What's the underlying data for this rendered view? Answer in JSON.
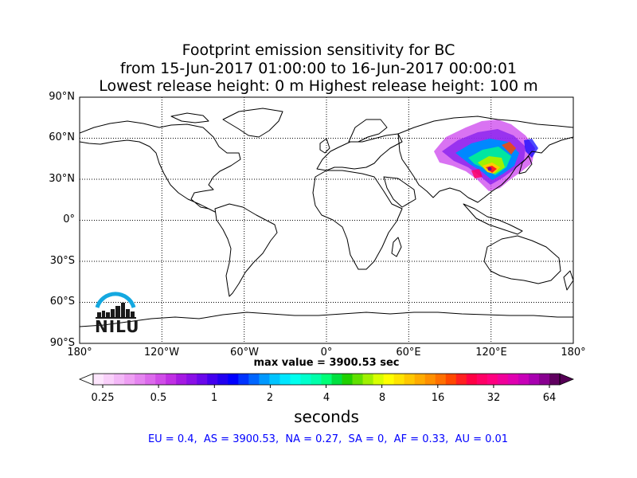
{
  "title": {
    "line1": "Footprint emission sensitivity for BC",
    "line2": "from 15-Jun-2017 01:00:00 to 16-Jun-2017 00:00:01",
    "line3": "Lowest release height: 0 m       Highest release height: 100 m"
  },
  "map": {
    "projection": "cylindrical",
    "grid": "dotted",
    "lat_labels": [
      "90°N",
      "60°N",
      "30°N",
      "0°",
      "30°S",
      "60°S",
      "90°S"
    ],
    "lon_labels": [
      "180°",
      "120°W",
      "60°W",
      "0°",
      "60°E",
      "120°E",
      "180°"
    ],
    "plume_region": "East Asia (China / Mongolia / Russian Far East)"
  },
  "logo": {
    "text": "NILU",
    "arc_color": "#14a8e0"
  },
  "max_value": "max value = 3900.53 sec",
  "colorbar": {
    "ticks": [
      "0.25",
      "0.5",
      "1",
      "2",
      "4",
      "8",
      "16",
      "32",
      "64"
    ],
    "units": "seconds",
    "colors": [
      "#fde6fd",
      "#f9d0fa",
      "#f3b8f7",
      "#ee9ff3",
      "#e585f0",
      "#dc6aec",
      "#d04de8",
      "#c030e4",
      "#a51ae2",
      "#8a10e6",
      "#6a08ea",
      "#4400ee",
      "#2200f0",
      "#0000ff",
      "#0033ff",
      "#0066ff",
      "#0099ff",
      "#00c4ff",
      "#00e6ff",
      "#00ffee",
      "#00ffcc",
      "#00ffaa",
      "#00ff77",
      "#00e040",
      "#20d000",
      "#60e000",
      "#a0f000",
      "#d8ff00",
      "#ffff00",
      "#ffe400",
      "#ffc800",
      "#ffac00",
      "#ff9000",
      "#ff7000",
      "#ff4800",
      "#ff2020",
      "#ff0044",
      "#ff0066",
      "#ff0080",
      "#f0009a",
      "#e000b0",
      "#c800b8",
      "#a800b0",
      "#880090",
      "#600060"
    ]
  },
  "regions": "EU = 0.4,  AS = 3900.53,  NA = 0.27,  SA = 0,  AF = 0.33,  AU = 0.01"
}
